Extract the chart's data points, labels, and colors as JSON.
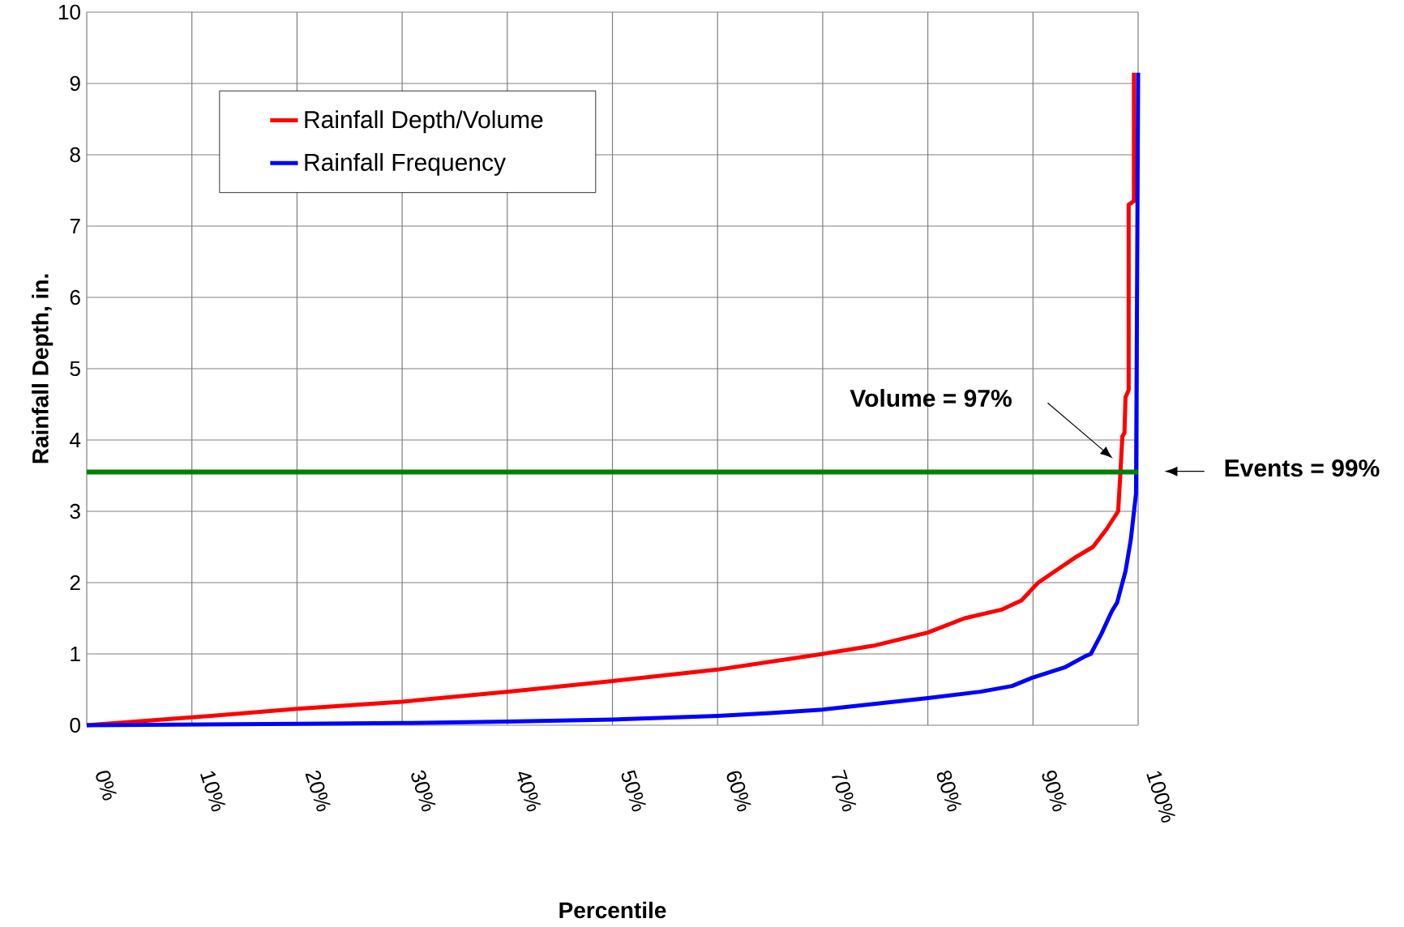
{
  "chart_data": {
    "type": "line",
    "xlabel": "Percentile",
    "ylabel": "Rainfall Depth, in.",
    "xlim": [
      0,
      100
    ],
    "ylim": [
      0,
      10
    ],
    "xticks": [
      {
        "value": 0,
        "label": "0%"
      },
      {
        "value": 10,
        "label": "10%"
      },
      {
        "value": 20,
        "label": "20%"
      },
      {
        "value": 30,
        "label": "30%"
      },
      {
        "value": 40,
        "label": "40%"
      },
      {
        "value": 50,
        "label": "50%"
      },
      {
        "value": 60,
        "label": "60%"
      },
      {
        "value": 70,
        "label": "70%"
      },
      {
        "value": 80,
        "label": "80%"
      },
      {
        "value": 90,
        "label": "90%"
      },
      {
        "value": 100,
        "label": "100%"
      }
    ],
    "yticks": [
      0,
      1,
      2,
      3,
      4,
      5,
      6,
      7,
      8,
      9,
      10
    ],
    "grid": true,
    "legend": "top left",
    "marker": "none",
    "line_style": "solid",
    "series": [
      {
        "name": "Rainfall Depth/Volume",
        "color": "#ff0000",
        "x": [
          0,
          10,
          20,
          30,
          40,
          50,
          60,
          70,
          75,
          80,
          83.5,
          87,
          88.9,
          90.5,
          92,
          94,
          95.7,
          97,
          98.1,
          98.3,
          98.5,
          98.7,
          98.8,
          99.1,
          99.1,
          99.6,
          99.6
        ],
        "values": [
          0,
          0.11,
          0.23,
          0.33,
          0.47,
          0.62,
          0.78,
          1.0,
          1.12,
          1.3,
          1.5,
          1.62,
          1.75,
          2.0,
          2.15,
          2.35,
          2.5,
          2.75,
          3.0,
          3.5,
          4.05,
          4.1,
          4.6,
          4.7,
          7.3,
          7.35,
          9.15
        ]
      },
      {
        "name": "Rainfall Frequency",
        "color": "#0000ff",
        "x": [
          0,
          20,
          30,
          40,
          50,
          60,
          65,
          70,
          80,
          85,
          88,
          90,
          93,
          95,
          95.5,
          96.5,
          97.5,
          98,
          98.8,
          99.3,
          99.8,
          100
        ],
        "values": [
          0,
          0.02,
          0.03,
          0.05,
          0.08,
          0.13,
          0.17,
          0.22,
          0.38,
          0.47,
          0.55,
          0.67,
          0.81,
          0.97,
          1.0,
          1.28,
          1.6,
          1.72,
          2.16,
          2.6,
          3.25,
          9.15
        ]
      }
    ],
    "ref_lines": [
      {
        "axis": "y",
        "value": 3.55,
        "color": "#008000"
      }
    ],
    "annotations": [
      "Volume = 97%",
      "Events = 99%"
    ]
  }
}
